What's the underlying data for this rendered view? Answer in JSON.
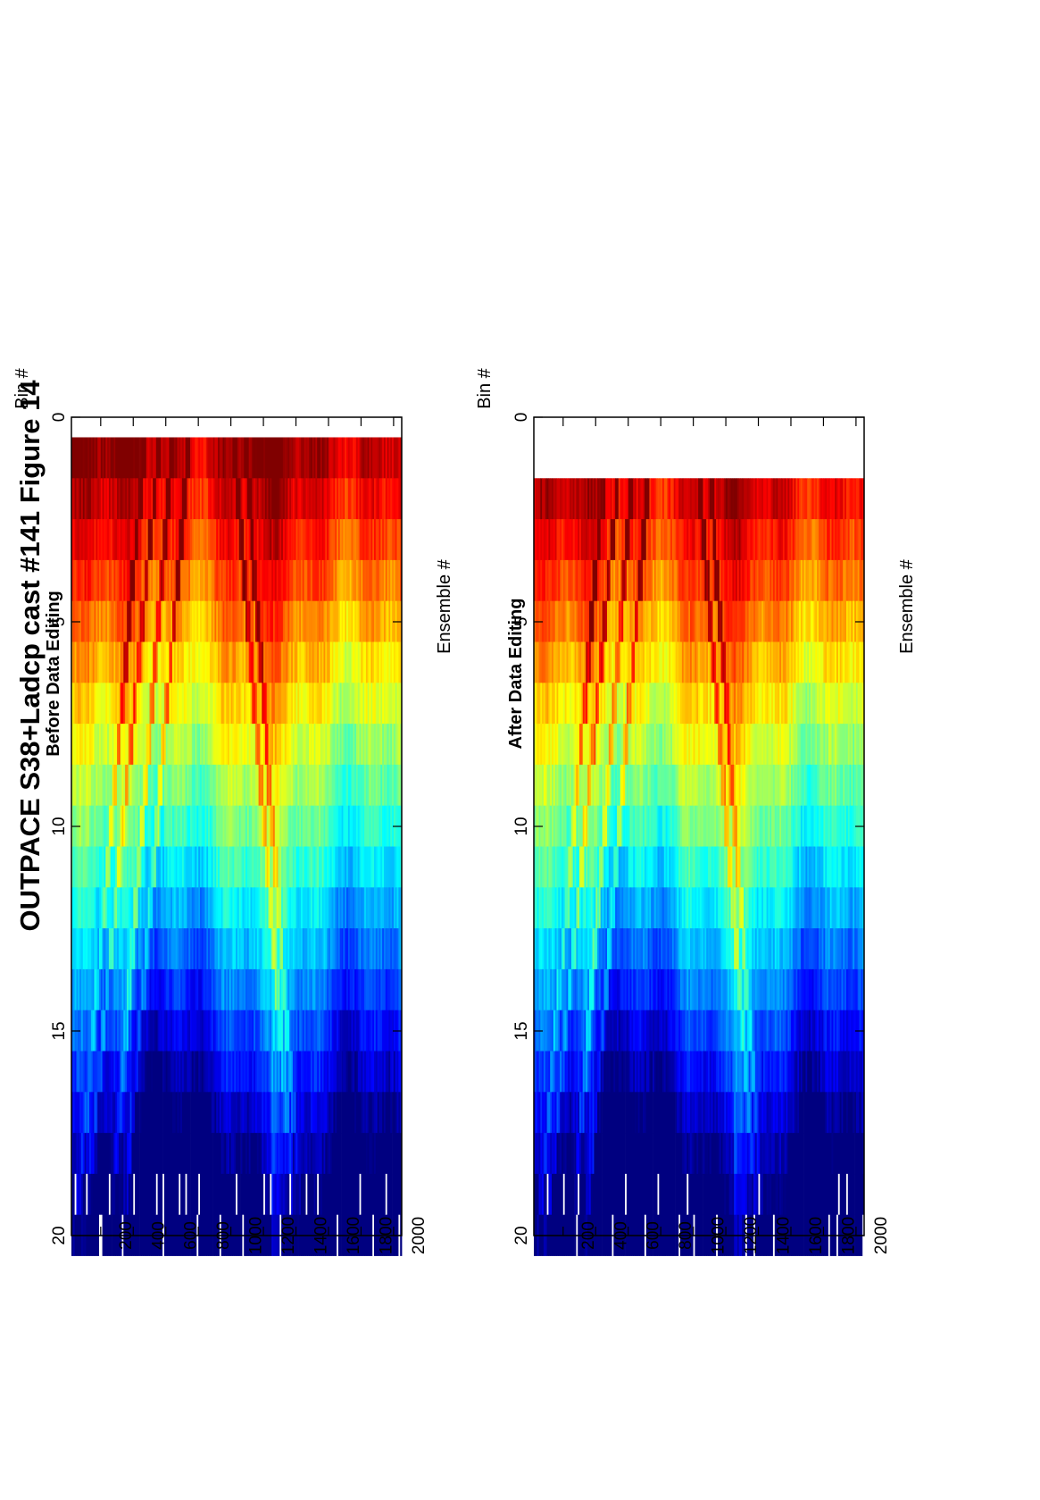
{
  "figure": {
    "title": "OUTPACE S38+Ladcp cast #141  Figure 14"
  },
  "chart_data": [
    {
      "type": "heatmap",
      "title": "Before Data Editing",
      "xlabel": "Ensemble #",
      "ylabel": "Bin #",
      "xlim": [
        20,
        2050
      ],
      "ylim": [
        0,
        20
      ],
      "xticks": [
        200,
        400,
        600,
        800,
        1000,
        1200,
        1400,
        1600,
        1800,
        2000
      ],
      "yticks": [
        0,
        5,
        10,
        15,
        20
      ],
      "y_reversed": true,
      "first_bin": 0.5,
      "colormap": "jet",
      "grid": false
    },
    {
      "type": "heatmap",
      "title": "After Data Editing",
      "xlabel": "Ensemble #",
      "ylabel": "Bin #",
      "xlim": [
        20,
        2050
      ],
      "ylim": [
        0,
        20
      ],
      "xticks": [
        200,
        400,
        600,
        800,
        1000,
        1200,
        1400,
        1600,
        1800,
        2000
      ],
      "yticks": [
        0,
        5,
        10,
        15,
        20
      ],
      "y_reversed": true,
      "first_bin": 1.5,
      "colormap": "jet",
      "grid": false
    }
  ]
}
